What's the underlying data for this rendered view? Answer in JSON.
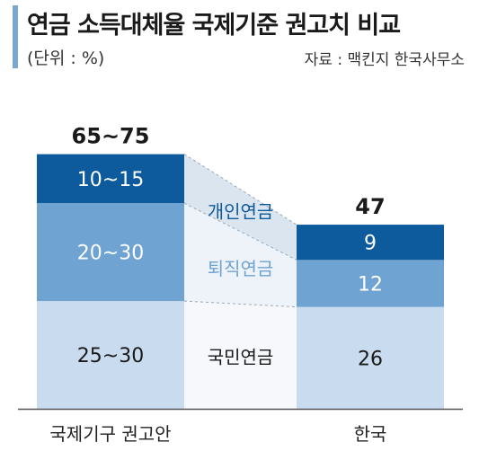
{
  "header": {
    "title": "연금 소득대체율 국제기준 권고치 비교",
    "unit": "(단위 : %)",
    "source": "자료 : 맥킨지 한국사무소"
  },
  "colors": {
    "dark": "#0d5a9c",
    "mid": "#6fa3d2",
    "light": "#c9dbee",
    "band_top": "#dbe5f0",
    "band_mid": "#eef3f9",
    "band_bot": "#f6f8fb",
    "axis": "#555555"
  },
  "chart_data": {
    "type": "bar",
    "stacked": true,
    "ylim": [
      0,
      75
    ],
    "categories": [
      "국제기구 권고안",
      "한국"
    ],
    "series": [
      {
        "name": "국민연금",
        "values": [
          27.5,
          26
        ],
        "labels": [
          "25~30",
          "26"
        ],
        "color": "light"
      },
      {
        "name": "퇴직연금",
        "values": [
          25,
          12
        ],
        "labels": [
          "20~30",
          "12"
        ],
        "color": "mid"
      },
      {
        "name": "개인연금",
        "values": [
          12.5,
          9
        ],
        "labels": [
          "10~15",
          "9"
        ],
        "color": "dark"
      }
    ],
    "totals": [
      "65~75",
      "47"
    ],
    "grid": false,
    "legend": "inline-between-bars"
  }
}
